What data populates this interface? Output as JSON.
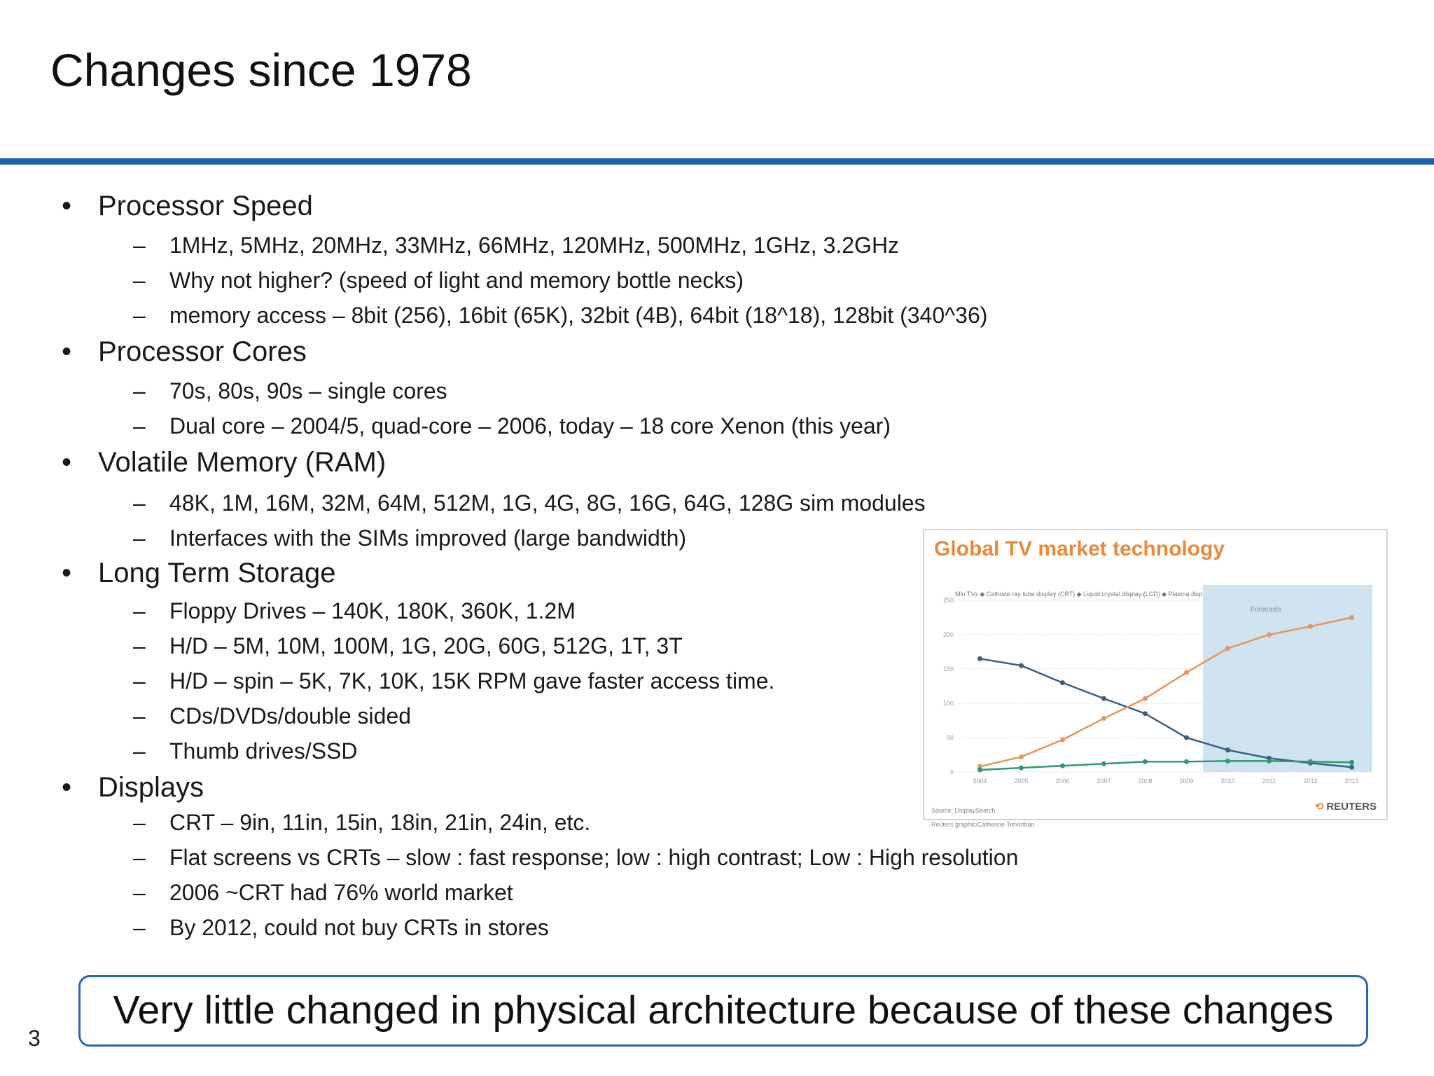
{
  "slide": {
    "title": "Changes since 1978",
    "page_number": "3",
    "callout": "Very little changed in physical architecture because of these changes"
  },
  "bullets": [
    {
      "label": "Processor Speed",
      "sub": [
        "1MHz, 5MHz, 20MHz, 33MHz, 66MHz, 120MHz, 500MHz, 1GHz, 3.2GHz",
        "Why not higher? (speed of light and memory bottle necks)",
        "memory access – 8bit (256), 16bit (65K), 32bit (4B), 64bit (18^18), 128bit (340^36)"
      ]
    },
    {
      "label": "Processor Cores",
      "sub": [
        "70s, 80s, 90s – single cores",
        "Dual core – 2004/5, quad-core – 2006, today – 18 core Xenon (this year)"
      ]
    },
    {
      "label": "Volatile Memory (RAM)",
      "sub": [
        "48K, 1M, 16M, 32M, 64M, 512M, 1G, 4G, 8G, 16G, 64G, 128G sim modules",
        "Interfaces with the SIMs improved (large bandwidth)"
      ]
    },
    {
      "label": "Long Term Storage",
      "sub": [
        "Floppy Drives – 140K, 180K, 360K, 1.2M",
        "H/D – 5M, 10M, 100M, 1G, 20G, 60G, 512G, 1T, 3T",
        "H/D – spin – 5K, 7K, 10K, 15K RPM gave faster access time.",
        "CDs/DVDs/double sided",
        "Thumb drives/SSD"
      ]
    },
    {
      "label": "Displays",
      "sub": [
        "CRT – 9in, 11in, 15in, 18in, 21in, 24in, etc.",
        "Flat screens vs CRTs – slow : fast response; low : high contrast; Low : High resolution",
        "2006 ~CRT had 76% world market",
        "By 2012, could not buy CRTs in stores"
      ]
    }
  ],
  "chart_data": {
    "type": "line",
    "title": "Global TV market technology",
    "legend_text": "Mln TVs  ◆ Cathode ray tube display (CRT)  ◆ Liquid crystal display (LCD)  ◆ Plasma display panel (PDP)",
    "forecast_label": "Forecasts",
    "forecast_from": "2010",
    "x": [
      "2004",
      "2005",
      "2006",
      "2007",
      "2008",
      "2009",
      "2010",
      "2011",
      "2012",
      "2013"
    ],
    "ylim": [
      0,
      250
    ],
    "yticks": [
      0,
      50,
      100,
      150,
      200,
      250
    ],
    "series": [
      {
        "name": "Cathode ray tube display (CRT)",
        "color": "#3b5f80",
        "values": [
          165,
          155,
          130,
          107,
          85,
          50,
          32,
          20,
          13,
          7
        ]
      },
      {
        "name": "Liquid crystal display (LCD)",
        "color": "#e8955a",
        "values": [
          8,
          22,
          47,
          78,
          107,
          145,
          180,
          200,
          212,
          225
        ]
      },
      {
        "name": "Plasma display panel (PDP)",
        "color": "#2f9a6a",
        "values": [
          3,
          6,
          9,
          12,
          15,
          15,
          16,
          16,
          15,
          14
        ]
      }
    ],
    "source": "Source: DisplaySearch",
    "credit": "Reuters graphic/Catherine Trevethan",
    "brand": "REUTERS",
    "gridlines": true
  }
}
